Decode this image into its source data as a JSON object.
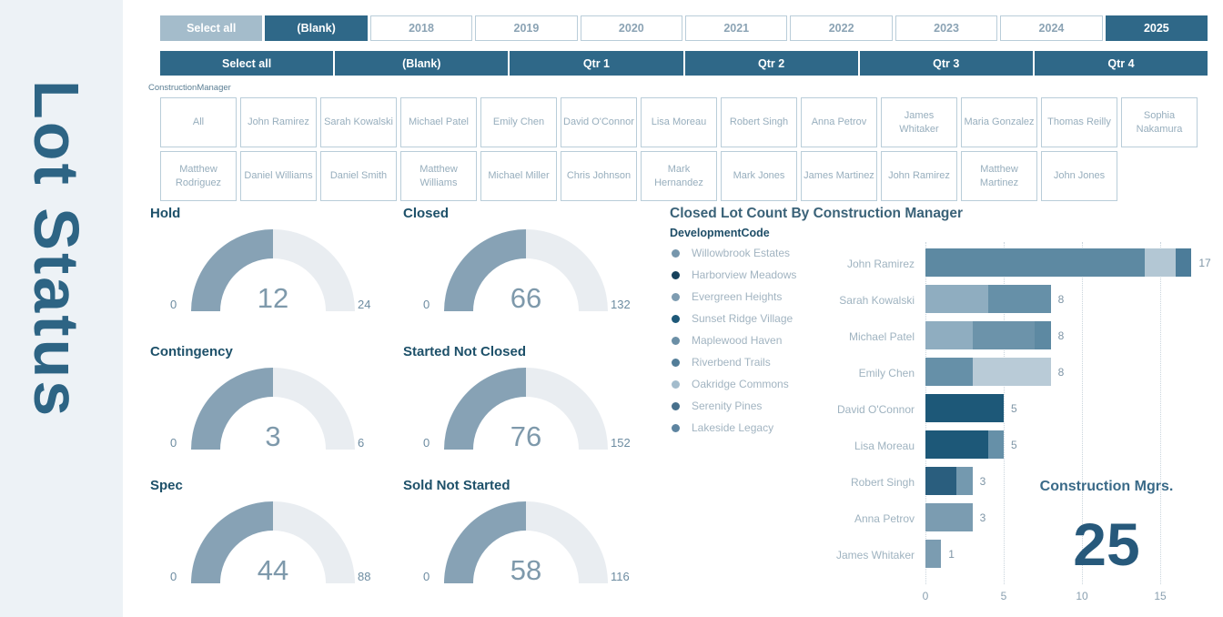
{
  "sidebar": {
    "title": "Lot Status"
  },
  "year_filter": {
    "items": [
      {
        "label": "Select all",
        "state": "partial"
      },
      {
        "label": "(Blank)",
        "state": "selected"
      },
      {
        "label": "2018",
        "state": "unselected"
      },
      {
        "label": "2019",
        "state": "unselected"
      },
      {
        "label": "2020",
        "state": "unselected"
      },
      {
        "label": "2021",
        "state": "unselected"
      },
      {
        "label": "2022",
        "state": "unselected"
      },
      {
        "label": "2023",
        "state": "unselected"
      },
      {
        "label": "2024",
        "state": "unselected"
      },
      {
        "label": "2025",
        "state": "selected"
      }
    ]
  },
  "quarter_filter": {
    "items": [
      {
        "label": "Select all",
        "state": "selected"
      },
      {
        "label": "(Blank)",
        "state": "selected"
      },
      {
        "label": "Qtr 1",
        "state": "selected"
      },
      {
        "label": "Qtr 2",
        "state": "selected"
      },
      {
        "label": "Qtr 3",
        "state": "selected"
      },
      {
        "label": "Qtr 4",
        "state": "selected"
      }
    ]
  },
  "manager_filter": {
    "label": "ConstructionManager",
    "rows": [
      [
        "All",
        "John Ramirez",
        "Sarah Kowalski",
        "Michael Patel",
        "Emily Chen",
        "David O'Connor",
        "Lisa Moreau",
        "Robert Singh",
        "Anna Petrov",
        "James Whitaker",
        "Maria Gonzalez",
        "Thomas Reilly",
        "Sophia Nakamura"
      ],
      [
        "Matthew Rodriguez",
        "Daniel Williams",
        "Daniel Smith",
        "Matthew Williams",
        "Michael Miller",
        "Chris Johnson",
        "Mark Hernandez",
        "Mark Jones",
        "James Martinez",
        "John Ramirez",
        "Matthew Martinez",
        "John Jones"
      ]
    ]
  },
  "gauges": [
    {
      "title": "Hold",
      "min": "0",
      "value": "12",
      "max": "24"
    },
    {
      "title": "Closed",
      "min": "0",
      "value": "66",
      "max": "132"
    },
    {
      "title": "Contingency",
      "min": "0",
      "value": "3",
      "max": "6"
    },
    {
      "title": "Started Not Closed",
      "min": "0",
      "value": "76",
      "max": "152"
    },
    {
      "title": "Spec",
      "min": "0",
      "value": "44",
      "max": "88"
    },
    {
      "title": "Sold Not Started",
      "min": "0",
      "value": "58",
      "max": "116"
    }
  ],
  "chart_data": {
    "type": "bar",
    "title": "Closed Lot Count By Construction Manager",
    "legend_title": "DevelopmentCode",
    "legend_position": "left",
    "grid": "dotted-vertical",
    "legend": [
      {
        "label": "Willowbrook Estates",
        "color": "#7696ac"
      },
      {
        "label": "Harborview Meadows",
        "color": "#16425c"
      },
      {
        "label": "Evergreen Heights",
        "color": "#7e9cb1"
      },
      {
        "label": "Sunset Ridge Village",
        "color": "#1d5878"
      },
      {
        "label": "Maplewood Haven",
        "color": "#6b8fa6"
      },
      {
        "label": "Riverbend Trails",
        "color": "#527d98"
      },
      {
        "label": "Oakridge Commons",
        "color": "#a3bccc"
      },
      {
        "label": "Serenity Pines",
        "color": "#47708c"
      },
      {
        "label": "Lakeside Legacy",
        "color": "#5d84a0"
      }
    ],
    "categories": [
      "John Ramirez",
      "Sarah Kowalski",
      "Michael Patel",
      "Emily Chen",
      "David O'Connor",
      "Lisa Moreau",
      "Robert Singh",
      "Anna Petrov",
      "James Whitaker"
    ],
    "totals": [
      17,
      8,
      8,
      8,
      5,
      5,
      3,
      3,
      1
    ],
    "bars": [
      {
        "name": "John Ramirez",
        "total": 17,
        "segments": [
          {
            "value": 14,
            "color": "#5d89a2"
          },
          {
            "value": 2,
            "color": "#b3c7d4"
          },
          {
            "value": 1,
            "color": "#4c7c99"
          }
        ]
      },
      {
        "name": "Sarah Kowalski",
        "total": 8,
        "segments": [
          {
            "value": 4,
            "color": "#8fadc0"
          },
          {
            "value": 4,
            "color": "#6690a8"
          }
        ]
      },
      {
        "name": "Michael Patel",
        "total": 8,
        "segments": [
          {
            "value": 3,
            "color": "#8fadc0"
          },
          {
            "value": 4,
            "color": "#6c93aa"
          },
          {
            "value": 1,
            "color": "#5d89a2"
          }
        ]
      },
      {
        "name": "Emily Chen",
        "total": 8,
        "segments": [
          {
            "value": 3,
            "color": "#6690a8"
          },
          {
            "value": 5,
            "color": "#b9cbd7"
          }
        ]
      },
      {
        "name": "David O'Connor",
        "total": 5,
        "segments": [
          {
            "value": 5,
            "color": "#1d5878"
          }
        ]
      },
      {
        "name": "Lisa Moreau",
        "total": 5,
        "segments": [
          {
            "value": 4,
            "color": "#1d5878"
          },
          {
            "value": 1,
            "color": "#6690a8"
          }
        ]
      },
      {
        "name": "Robert Singh",
        "total": 3,
        "segments": [
          {
            "value": 2,
            "color": "#2a5e7e"
          },
          {
            "value": 1,
            "color": "#7499af"
          }
        ]
      },
      {
        "name": "Anna Petrov",
        "total": 3,
        "segments": [
          {
            "value": 3,
            "color": "#7b9cb1"
          }
        ]
      },
      {
        "name": "James Whitaker",
        "total": 1,
        "segments": [
          {
            "value": 1,
            "color": "#7b9cb1"
          }
        ]
      }
    ],
    "x_ticks": [
      0,
      5,
      10,
      15
    ],
    "xlim": [
      0,
      18
    ]
  },
  "card": {
    "label": "Construction Mgrs.",
    "value": "25"
  },
  "colors": {
    "accent_teal": "#2f6888",
    "partial_fill": "#a4bccb",
    "gauge_fill": "#87a2b5",
    "gauge_track": "#e9edf1",
    "sidebar_bg": "#edf2f6",
    "title_text": "#1d5069"
  }
}
